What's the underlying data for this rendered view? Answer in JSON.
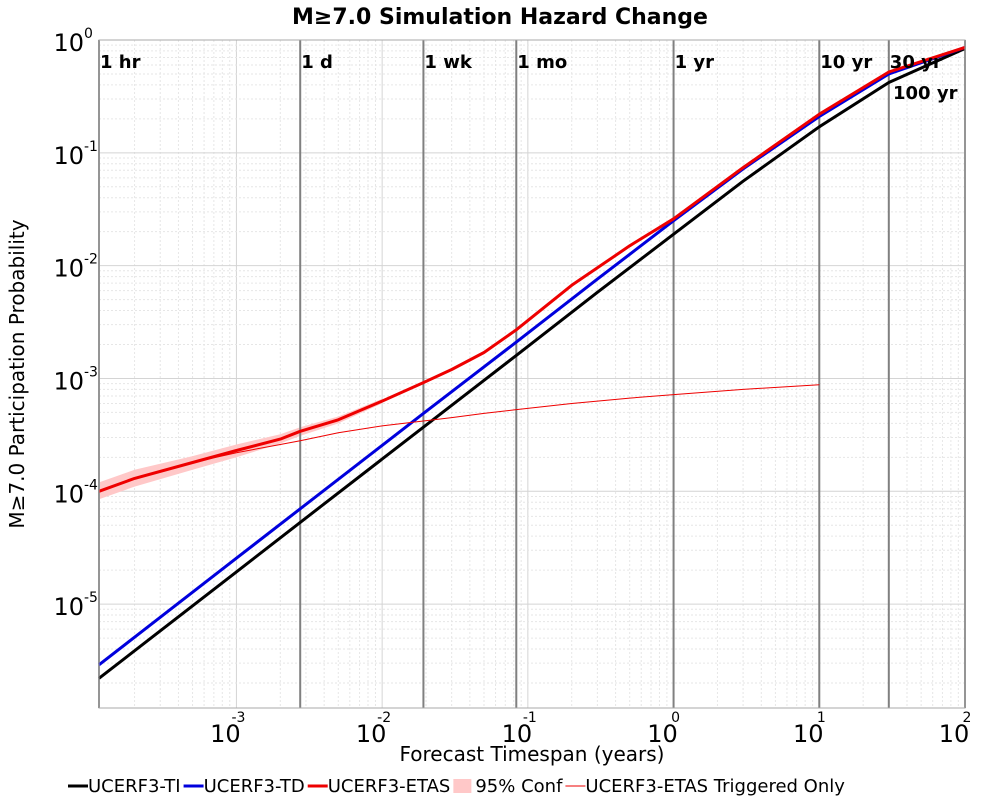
{
  "chart_data": {
    "type": "line",
    "title": "M≥7.0 Simulation Hazard Change",
    "xlabel": "Forecast Timespan (years)",
    "ylabel": "M≥7.0 Participation Probability",
    "xscale": "log",
    "yscale": "log",
    "xlim": [
      0.000114,
      100
    ],
    "ylim": [
      1.2e-06,
      1
    ],
    "grid": true,
    "legend_position": "bottom",
    "x_ticks": [
      {
        "base": "10",
        "exp": "-3",
        "value": 0.001
      },
      {
        "base": "10",
        "exp": "-2",
        "value": 0.01
      },
      {
        "base": "10",
        "exp": "-1",
        "value": 0.1
      },
      {
        "base": "10",
        "exp": "0",
        "value": 1
      },
      {
        "base": "10",
        "exp": "1",
        "value": 10
      },
      {
        "base": "10",
        "exp": "2",
        "value": 100
      }
    ],
    "y_ticks": [
      {
        "base": "10",
        "exp": "0",
        "value": 1
      },
      {
        "base": "10",
        "exp": "-1",
        "value": 0.1
      },
      {
        "base": "10",
        "exp": "-2",
        "value": 0.01
      },
      {
        "base": "10",
        "exp": "-3",
        "value": 0.001
      },
      {
        "base": "10",
        "exp": "-4",
        "value": 0.0001
      },
      {
        "base": "10",
        "exp": "-5",
        "value": 1e-05
      }
    ],
    "markers": [
      {
        "label": "1 hr",
        "x": 0.000114,
        "row": 0
      },
      {
        "label": "1 d",
        "x": 0.00274,
        "row": 0
      },
      {
        "label": "1 wk",
        "x": 0.0192,
        "row": 0
      },
      {
        "label": "1 mo",
        "x": 0.0833,
        "row": 0
      },
      {
        "label": "1 yr",
        "x": 1,
        "row": 0
      },
      {
        "label": "10 yr",
        "x": 10,
        "row": 0
      },
      {
        "label": "30 yr",
        "x": 30,
        "row": 0
      },
      {
        "label": "100 yr",
        "x": 100,
        "row": 1
      }
    ],
    "series": [
      {
        "name": "UCERF3-TI",
        "color": "#000000",
        "style": "thick",
        "x": [
          0.000114,
          0.001,
          0.00274,
          0.01,
          0.0192,
          0.0833,
          0.3,
          1,
          3,
          10,
          30,
          100
        ],
        "y": [
          2.2e-06,
          1.93e-05,
          5.3e-05,
          0.000193,
          0.00037,
          0.0016,
          0.0058,
          0.019,
          0.056,
          0.17,
          0.42,
          0.84
        ]
      },
      {
        "name": "UCERF3-TD",
        "color": "#0000dd",
        "style": "thick",
        "x": [
          0.000114,
          0.001,
          0.00274,
          0.01,
          0.0192,
          0.0833,
          0.3,
          1,
          3,
          10,
          30,
          100
        ],
        "y": [
          2.9e-06,
          2.55e-05,
          7e-05,
          0.000255,
          0.00049,
          0.0021,
          0.0076,
          0.025,
          0.072,
          0.21,
          0.5,
          0.86
        ]
      },
      {
        "name": "UCERF3-ETAS",
        "color": "#ee0000",
        "style": "thick",
        "x": [
          0.000114,
          0.0002,
          0.0005,
          0.001,
          0.002,
          0.00274,
          0.005,
          0.01,
          0.0192,
          0.03,
          0.05,
          0.0833,
          0.2,
          0.5,
          1,
          3,
          10,
          30,
          100
        ],
        "y": [
          0.0001,
          0.00013,
          0.00018,
          0.00023,
          0.00029,
          0.00034,
          0.00043,
          0.00063,
          0.00092,
          0.0012,
          0.0017,
          0.0027,
          0.0067,
          0.015,
          0.026,
          0.074,
          0.22,
          0.52,
          0.86
        ]
      },
      {
        "name": "95% Conf",
        "color": "#ffc8c8",
        "style": "band",
        "x": [
          0.000114,
          0.0002,
          0.0005,
          0.001,
          0.002,
          0.00274,
          0.005,
          0.01
        ],
        "y_low": [
          8.5e-05,
          0.00011,
          0.000155,
          0.0002,
          0.000265,
          0.00031,
          0.0004,
          0.0006
        ],
        "y_high": [
          0.00012,
          0.000155,
          0.000205,
          0.00026,
          0.00032,
          0.00037,
          0.00046,
          0.00066
        ]
      },
      {
        "name": "UCERF3-ETAS Triggered Only",
        "color": "#ee0000",
        "style": "thin",
        "x": [
          0.000114,
          0.0002,
          0.0005,
          0.001,
          0.002,
          0.00274,
          0.005,
          0.01,
          0.0192,
          0.03,
          0.05,
          0.0833,
          0.2,
          0.5,
          1,
          3,
          10
        ],
        "y": [
          0.0001,
          0.00013,
          0.00018,
          0.00022,
          0.00026,
          0.00028,
          0.00033,
          0.00038,
          0.00042,
          0.00045,
          0.00049,
          0.00053,
          0.0006,
          0.00067,
          0.00072,
          0.0008,
          0.00088
        ]
      }
    ]
  }
}
